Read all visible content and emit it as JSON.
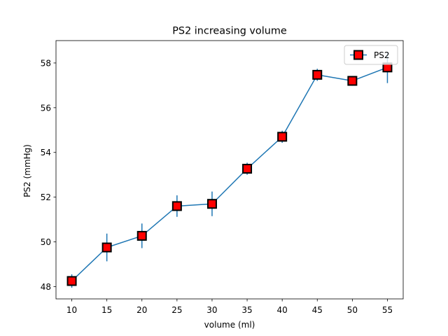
{
  "chart_data": {
    "type": "line",
    "title": "PS2 increasing volume",
    "xlabel": "volume (ml)",
    "ylabel": "PS2 (mmHg)",
    "x": [
      10,
      15,
      20,
      25,
      30,
      35,
      40,
      45,
      50,
      55
    ],
    "xticks": [
      10,
      15,
      20,
      25,
      30,
      35,
      40,
      45,
      50,
      55
    ],
    "yticks": [
      48,
      50,
      52,
      54,
      56,
      58
    ],
    "xlim": [
      7.75,
      57.25
    ],
    "ylim": [
      47.45,
      59.0
    ],
    "grid": false,
    "legend_position": "upper right",
    "series": [
      {
        "name": "PS2",
        "values": [
          48.25,
          49.75,
          50.27,
          51.6,
          51.7,
          53.27,
          54.7,
          57.47,
          57.2,
          57.8
        ],
        "error": [
          0.3,
          0.62,
          0.55,
          0.48,
          0.55,
          0.27,
          0.27,
          0.27,
          0.22,
          0.7
        ],
        "line_color": "#1f77b4",
        "marker": "square",
        "marker_face": "#ff0000",
        "marker_edge": "#000000"
      }
    ]
  }
}
